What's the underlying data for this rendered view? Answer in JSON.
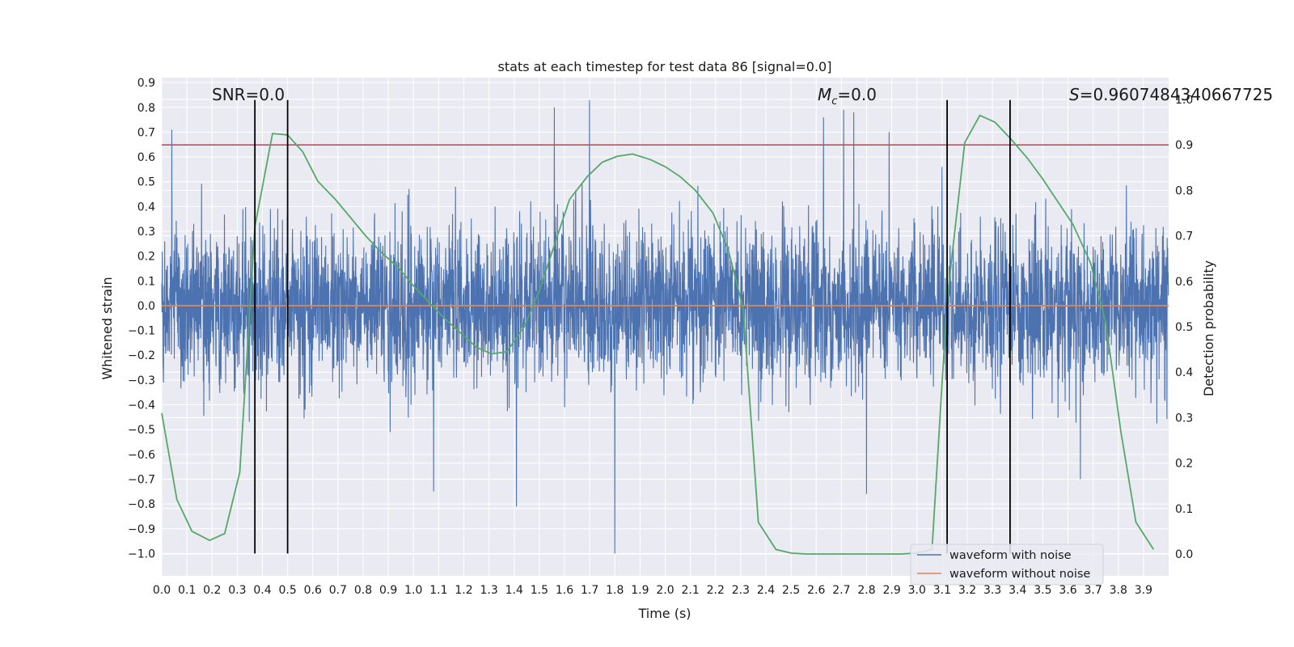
{
  "chart_data": {
    "type": "line",
    "title": "stats at each timestep for test data 86 [signal=0.0]",
    "xlabel": "Time (s)",
    "ylabel": "Whitened strain",
    "y2label": "Detection probability",
    "xlim": [
      0.0,
      4.0
    ],
    "ylim": [
      -1.09,
      0.92
    ],
    "y2lim": [
      -0.048,
      1.048
    ],
    "grid": true,
    "x_ticks": [
      "0.0",
      "0.1",
      "0.2",
      "0.3",
      "0.4",
      "0.5",
      "0.6",
      "0.7",
      "0.8",
      "0.9",
      "1.0",
      "1.1",
      "1.2",
      "1.3",
      "1.4",
      "1.5",
      "1.6",
      "1.7",
      "1.8",
      "1.9",
      "2.0",
      "2.1",
      "2.2",
      "2.3",
      "2.4",
      "2.5",
      "2.6",
      "2.7",
      "2.8",
      "2.9",
      "3.0",
      "3.1",
      "3.2",
      "3.3",
      "3.4",
      "3.5",
      "3.6",
      "3.7",
      "3.8",
      "3.9"
    ],
    "y_ticks": [
      "0.9",
      "0.8",
      "0.7",
      "0.6",
      "0.5",
      "0.4",
      "0.3",
      "0.2",
      "0.1",
      "0.0",
      "−0.1",
      "−0.2",
      "−0.3",
      "−0.4",
      "−0.5",
      "−0.6",
      "−0.7",
      "−0.8",
      "−0.9",
      "−1.0"
    ],
    "y2_ticks": [
      "1.0",
      "0.9",
      "0.8",
      "0.7",
      "0.6",
      "0.5",
      "0.4",
      "0.3",
      "0.2",
      "0.1",
      "0.0"
    ],
    "annotations": {
      "snr": "SNR=0.0",
      "mc_symbol": "M",
      "mc_sub": "c",
      "mc_value": "=0.0",
      "s_symbol": "S",
      "s_value": "=0.9607484340667725"
    },
    "legend": {
      "position": "lower-right",
      "entries": [
        "waveform with noise",
        "waveform without noise"
      ]
    },
    "series": [
      {
        "name": "waveform with noise",
        "axis": "left",
        "color": "#4c72b0",
        "kind": "noise",
        "notable_spikes": [
          {
            "x": 0.04,
            "y": 0.71
          },
          {
            "x": 1.56,
            "y": 0.8
          },
          {
            "x": 1.7,
            "y": 0.83
          },
          {
            "x": 1.8,
            "y": -1.0
          },
          {
            "x": 2.63,
            "y": 0.76
          },
          {
            "x": 2.71,
            "y": 0.79
          },
          {
            "x": 2.75,
            "y": 0.78
          },
          {
            "x": 2.89,
            "y": 0.7
          },
          {
            "x": 1.41,
            "y": -0.81
          },
          {
            "x": 1.08,
            "y": -0.75
          },
          {
            "x": 2.8,
            "y": -0.76
          },
          {
            "x": 3.65,
            "y": -0.7
          },
          {
            "x": 0.3,
            "y": 0.28
          },
          {
            "x": 3.1,
            "y": 0.56
          }
        ]
      },
      {
        "name": "waveform without noise",
        "axis": "left",
        "color": "#dd8452",
        "x": [
          0.0,
          4.0
        ],
        "y": [
          0.0,
          0.0
        ]
      },
      {
        "name": "detection probability",
        "axis": "right",
        "color": "#55a868",
        "x": [
          0.0,
          0.06,
          0.12,
          0.19,
          0.25,
          0.31,
          0.37,
          0.44,
          0.5,
          0.56,
          0.62,
          0.69,
          0.75,
          0.81,
          0.87,
          0.94,
          1.0,
          1.06,
          1.12,
          1.19,
          1.25,
          1.31,
          1.37,
          1.44,
          1.5,
          1.56,
          1.62,
          1.69,
          1.75,
          1.81,
          1.87,
          1.94,
          2.0,
          2.06,
          2.12,
          2.19,
          2.25,
          2.31,
          2.37,
          2.44,
          2.5,
          2.56,
          2.62,
          2.69,
          2.75,
          2.81,
          2.87,
          2.94,
          3.0,
          3.06,
          3.12,
          3.19,
          3.25,
          3.31,
          3.37,
          3.44,
          3.5,
          3.56,
          3.62,
          3.69,
          3.75,
          3.81,
          3.87,
          3.94
        ],
        "y": [
          0.31,
          0.12,
          0.05,
          0.03,
          0.045,
          0.18,
          0.72,
          0.925,
          0.922,
          0.885,
          0.82,
          0.78,
          0.74,
          0.7,
          0.665,
          0.63,
          0.59,
          0.555,
          0.52,
          0.485,
          0.455,
          0.44,
          0.445,
          0.5,
          0.58,
          0.68,
          0.78,
          0.83,
          0.862,
          0.875,
          0.88,
          0.868,
          0.852,
          0.83,
          0.8,
          0.75,
          0.67,
          0.54,
          0.07,
          0.01,
          0.002,
          0.0,
          0.0,
          0.0,
          0.0,
          0.0,
          0.0,
          0.0,
          0.002,
          0.01,
          0.56,
          0.905,
          0.965,
          0.95,
          0.915,
          0.87,
          0.825,
          0.775,
          0.725,
          0.64,
          0.51,
          0.27,
          0.07,
          0.01
        ]
      },
      {
        "name": "threshold",
        "axis": "right",
        "color": "#c44e52",
        "x": [
          0.0,
          4.0
        ],
        "y": [
          0.9,
          0.9
        ]
      },
      {
        "name": "event markers",
        "axis": "left",
        "color": "#000000",
        "kind": "vlines",
        "x": [
          0.37,
          0.5,
          3.12,
          3.37
        ],
        "ymin": -1.0,
        "ymax": 0.83
      }
    ]
  }
}
